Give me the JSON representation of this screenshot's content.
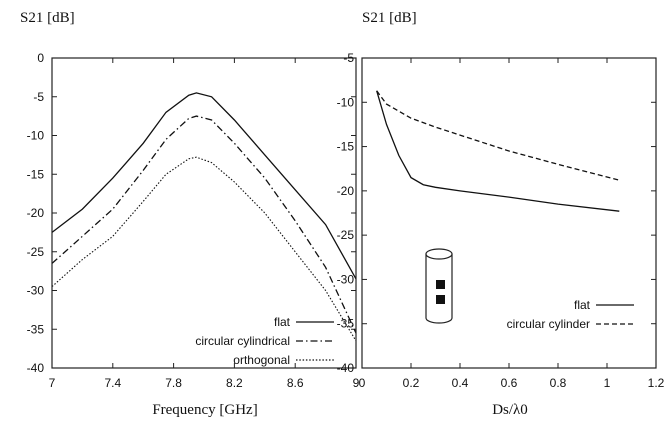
{
  "chart_data": [
    {
      "type": "line",
      "ylabel": "S21 [dB]",
      "xlabel": "Frequency [GHz]",
      "xlim": [
        7,
        9
      ],
      "ylim": [
        -40,
        0
      ],
      "xticks": [
        "7",
        "7.4",
        "7.8",
        "8.2",
        "8.6",
        "9"
      ],
      "yticks": [
        "0",
        "-5",
        "-10",
        "-15",
        "-20",
        "-25",
        "-30",
        "-35",
        "-40"
      ],
      "legend_position": "bottom-right",
      "series": [
        {
          "name": "flat",
          "style": "solid",
          "x": [
            7.0,
            7.2,
            7.4,
            7.6,
            7.75,
            7.9,
            7.95,
            8.05,
            8.2,
            8.4,
            8.6,
            8.8,
            9.0
          ],
          "y": [
            -22.5,
            -19.5,
            -15.5,
            -11.0,
            -7.0,
            -4.8,
            -4.5,
            -5.0,
            -8.0,
            -12.5,
            -17.0,
            -21.5,
            -28.5
          ]
        },
        {
          "name": "circular cylindrical",
          "style": "dashdot",
          "x": [
            7.0,
            7.2,
            7.4,
            7.6,
            7.75,
            7.9,
            7.95,
            8.05,
            8.2,
            8.4,
            8.6,
            8.8,
            9.0
          ],
          "y": [
            -26.5,
            -23.0,
            -19.5,
            -14.5,
            -10.5,
            -7.8,
            -7.5,
            -8.0,
            -11.0,
            -15.5,
            -21.0,
            -27.0,
            -35.5
          ]
        },
        {
          "name": "orthogonal",
          "style": "dotted",
          "x": [
            7.0,
            7.2,
            7.4,
            7.6,
            7.75,
            7.9,
            7.95,
            8.05,
            8.2,
            8.4,
            8.6,
            8.8,
            9.0
          ],
          "y": [
            -29.5,
            -26.0,
            -23.0,
            -18.5,
            -15.0,
            -13.0,
            -12.8,
            -13.5,
            -16.0,
            -20.0,
            -25.0,
            -30.0,
            -36.5
          ]
        }
      ]
    },
    {
      "type": "line",
      "ylabel": "S21 [dB]",
      "xlabel": "Ds/λ0",
      "xlim": [
        0,
        1.2
      ],
      "ylim": [
        -40,
        -5
      ],
      "xticks": [
        "0",
        "0.2",
        "0.4",
        "0.6",
        "0.8",
        "1",
        "1.2"
      ],
      "yticks": [
        "-5",
        "-10",
        "-15",
        "-20",
        "-25",
        "-30",
        "-35",
        "-40"
      ],
      "legend_position": "bottom-right",
      "series": [
        {
          "name": "flat",
          "style": "solid",
          "x": [
            0.06,
            0.1,
            0.15,
            0.2,
            0.25,
            0.3,
            0.4,
            0.6,
            0.8,
            1.05
          ],
          "y": [
            -8.7,
            -12.5,
            -16.0,
            -18.5,
            -19.3,
            -19.6,
            -20.0,
            -20.7,
            -21.5,
            -22.3
          ]
        },
        {
          "name": "circular cylinder",
          "style": "dashed",
          "x": [
            0.06,
            0.1,
            0.2,
            0.3,
            0.4,
            0.6,
            0.8,
            1.05
          ],
          "y": [
            -8.7,
            -10.2,
            -11.8,
            -12.8,
            -13.7,
            -15.5,
            -17.0,
            -18.8
          ]
        }
      ]
    }
  ]
}
